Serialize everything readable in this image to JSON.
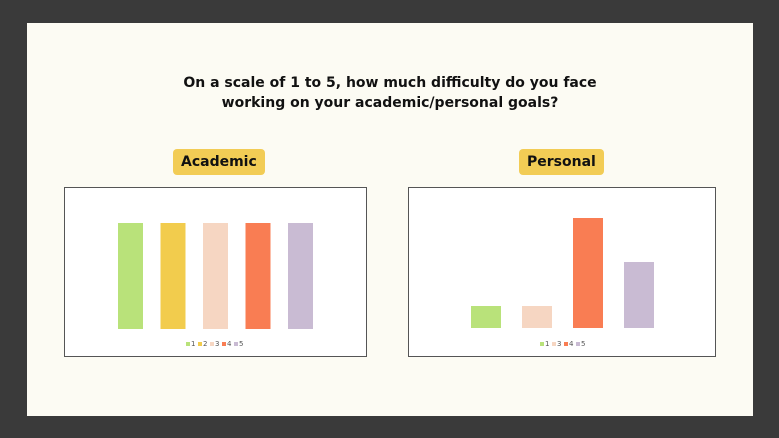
{
  "question": {
    "line1": "On a scale of 1 to 5, how much difficulty do you face",
    "line2": "working on your academic/personal goals?"
  },
  "academic_label": "Academic",
  "personal_label": "Personal",
  "colors": {
    "1": "#b9e27a",
    "2": "#f2cc4d",
    "3": "#f6d6c2",
    "4": "#f97d53",
    "5": "#c9bbd3"
  },
  "chart_data": [
    {
      "type": "bar",
      "title": "Academic",
      "categories": [
        "1",
        "2",
        "3",
        "4",
        "5"
      ],
      "values": [
        1,
        1,
        1,
        1,
        1
      ],
      "ylim": [
        0,
        1
      ],
      "legend": [
        "1",
        "2",
        "3",
        "4",
        "5"
      ],
      "legend_placement": "bottom"
    },
    {
      "type": "bar",
      "title": "Personal",
      "categories": [
        "1",
        "3",
        "4",
        "5"
      ],
      "values": [
        1,
        1,
        5,
        3
      ],
      "ylim": [
        0,
        5
      ],
      "legend": [
        "1",
        "3",
        "4",
        "5"
      ],
      "legend_placement": "bottom"
    }
  ]
}
